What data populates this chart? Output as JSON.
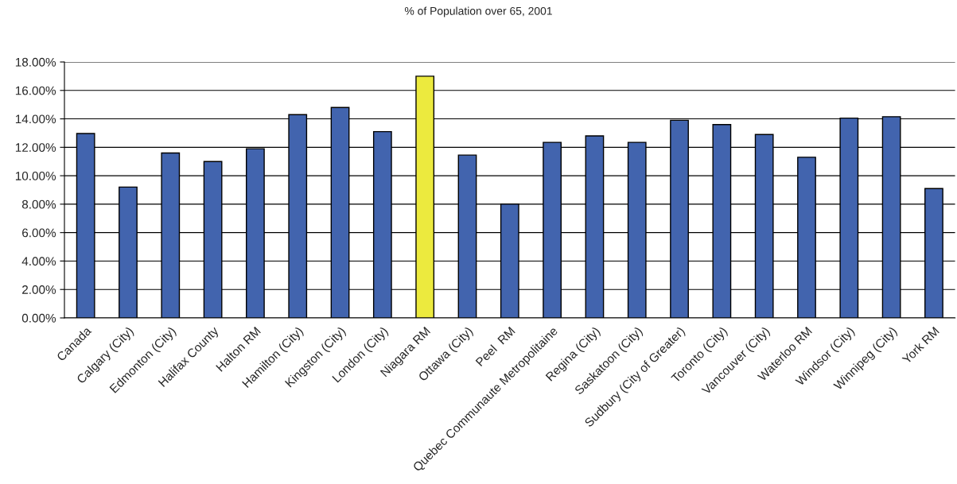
{
  "chart_data": {
    "type": "bar",
    "title": "% of Population over 65, 2001",
    "categories": [
      "Canada",
      "Calgary (City)",
      "Edmonton (City)",
      "Halifax County",
      "Halton RM",
      "Hamilton (City)",
      "Kingston (City)",
      "London (City)",
      "Niagara RM",
      "Ottawa (City)",
      "Peel  RM",
      "Quebec Communaute Metropolitaine",
      "Regina (City)",
      "Saskatoon (City)",
      "Sudbury (City of Greater)",
      "Toronto (City)",
      "Vancouver (City)",
      "Waterloo RM",
      "Windsor (City)",
      "Winnipeg (City)",
      "York RM"
    ],
    "values": [
      12.97,
      9.2,
      11.6,
      11.0,
      11.9,
      14.3,
      14.8,
      13.1,
      17.0,
      11.45,
      8.0,
      12.35,
      12.8,
      12.35,
      13.9,
      13.6,
      12.9,
      11.3,
      14.05,
      14.15,
      9.1
    ],
    "colors": [
      "#4264ae",
      "#4264ae",
      "#4264ae",
      "#4264ae",
      "#4264ae",
      "#4264ae",
      "#4264ae",
      "#4264ae",
      "#ecea3e",
      "#4264ae",
      "#4264ae",
      "#4264ae",
      "#4264ae",
      "#4264ae",
      "#4264ae",
      "#4264ae",
      "#4264ae",
      "#4264ae",
      "#4264ae",
      "#4264ae",
      "#4264ae"
    ],
    "ylim": [
      0,
      18
    ],
    "yticks": [
      {
        "value": 0,
        "label": "0.00%"
      },
      {
        "value": 2,
        "label": "2.00%"
      },
      {
        "value": 4,
        "label": "4.00%"
      },
      {
        "value": 6,
        "label": "6.00%"
      },
      {
        "value": 8,
        "label": "8.00%"
      },
      {
        "value": 10,
        "label": "10.00%"
      },
      {
        "value": 12,
        "label": "12.00%"
      },
      {
        "value": 14,
        "label": "14.00%"
      },
      {
        "value": 16,
        "label": "16.00%"
      },
      {
        "value": 18,
        "label": "18.00%"
      }
    ],
    "grid": "y",
    "legend": false
  }
}
